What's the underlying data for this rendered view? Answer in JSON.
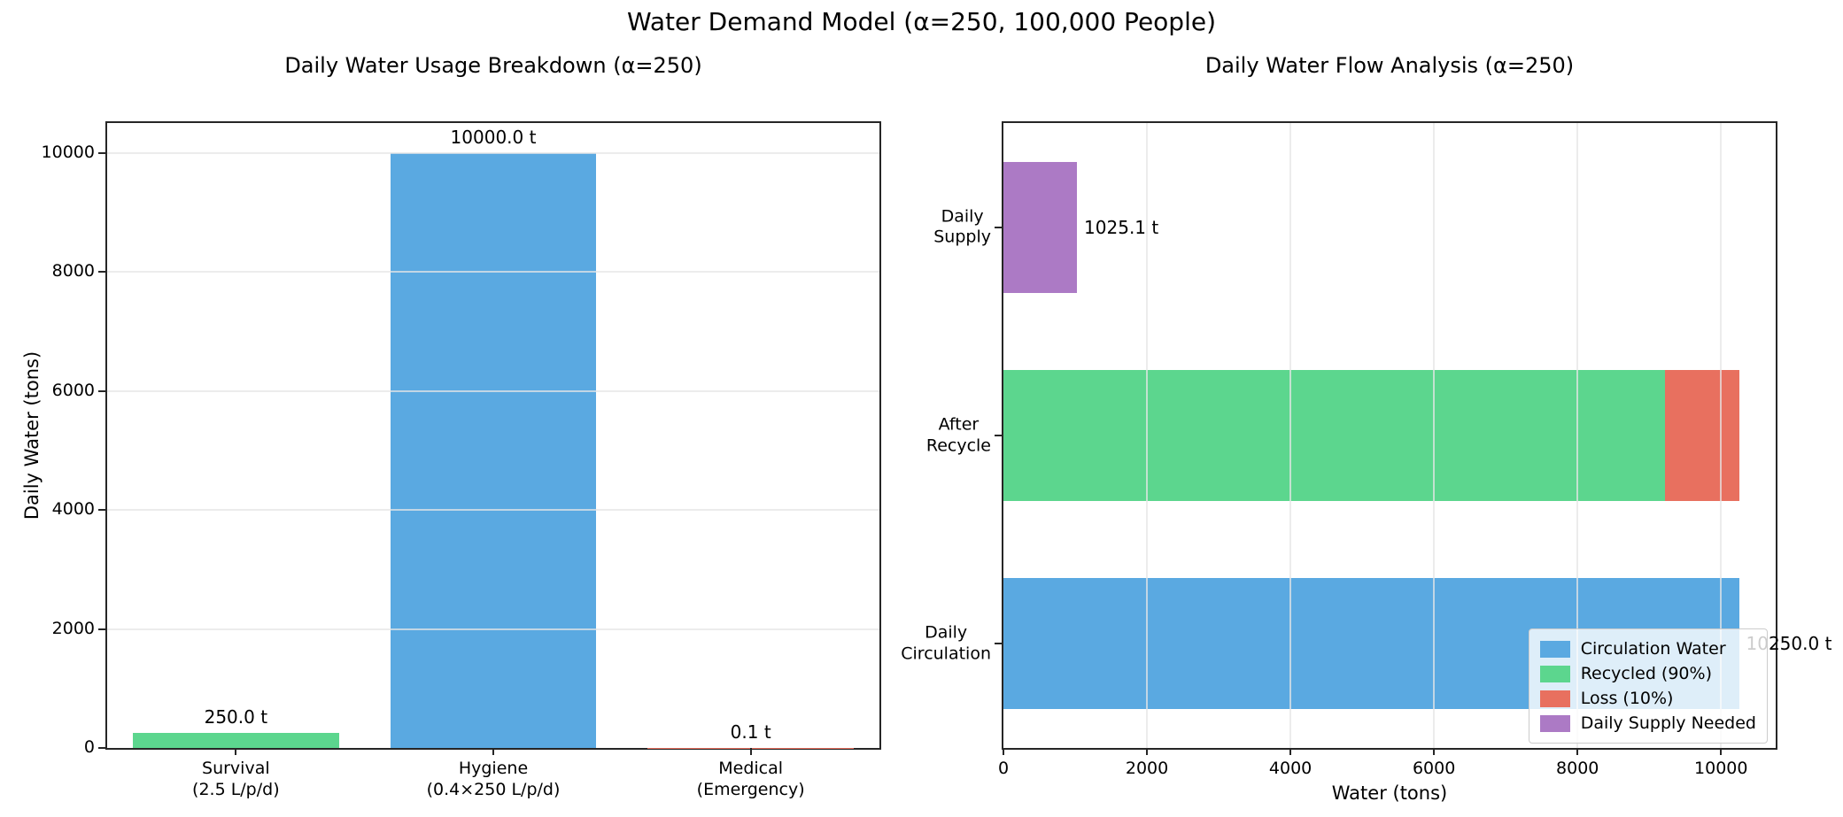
{
  "figure": {
    "suptitle": "Water Demand Model (α=250, 100,000 People)"
  },
  "colors": {
    "blue": "#5AA9E1",
    "green": "#5CD68E",
    "red": "#E8705F",
    "purple": "#AC7AC5",
    "spine": "#262626",
    "grid": "#e5e5e5"
  },
  "chart_data": [
    {
      "id": "usage",
      "type": "bar",
      "title": "Daily Water Usage Breakdown (α=250)",
      "ylabel": "Daily Water (tons)",
      "xlabel": "",
      "categories": [
        [
          "Survival",
          "(2.5 L/p/d)"
        ],
        [
          "Hygiene",
          "(0.4×250 L/p/d)"
        ],
        [
          "Medical",
          "(Emergency)"
        ]
      ],
      "values": [
        250.0,
        10000.0,
        0.1
      ],
      "bar_colors": [
        "#5CD68E",
        "#5AA9E1",
        "#E8705F"
      ],
      "value_labels": [
        "250.0 t",
        "10000.0 t",
        "0.1 t"
      ],
      "ylim": [
        0,
        10500
      ],
      "yticks": [
        0,
        2000,
        4000,
        6000,
        8000,
        10000
      ],
      "grid": "horizontal",
      "bar_width_frac": 0.8
    },
    {
      "id": "flow",
      "type": "barh-stacked",
      "title": "Daily Water Flow Analysis (α=250)",
      "xlabel": "Water (tons)",
      "ylabel": "",
      "categories": [
        [
          "Daily",
          "Supply"
        ],
        [
          "After",
          "Recycle"
        ],
        [
          "Daily",
          "Circulation"
        ]
      ],
      "rows": [
        {
          "segments": [
            {
              "name": "Daily Supply Needed",
              "value": 1025.1,
              "color": "#AC7AC5"
            }
          ],
          "value_label": "1025.1 t"
        },
        {
          "segments": [
            {
              "name": "Recycled (90%)",
              "value": 9225.0,
              "color": "#5CD68E"
            },
            {
              "name": "Loss (10%)",
              "value": 1025.0,
              "color": "#E8705F"
            }
          ],
          "value_label": ""
        },
        {
          "segments": [
            {
              "name": "Circulation Water",
              "value": 10250.0,
              "color": "#5AA9E1"
            }
          ],
          "value_label": "10250.0 t"
        }
      ],
      "xlim": [
        0,
        10762
      ],
      "xticks": [
        0,
        2000,
        4000,
        6000,
        8000,
        10000
      ],
      "grid": "vertical",
      "bar_height_frac": 0.63,
      "legend": {
        "position": "lower right",
        "entries": [
          {
            "label": "Circulation Water",
            "color": "#5AA9E1"
          },
          {
            "label": "Recycled (90%)",
            "color": "#5CD68E"
          },
          {
            "label": "Loss (10%)",
            "color": "#E8705F"
          },
          {
            "label": "Daily Supply Needed",
            "color": "#AC7AC5"
          }
        ]
      }
    }
  ]
}
